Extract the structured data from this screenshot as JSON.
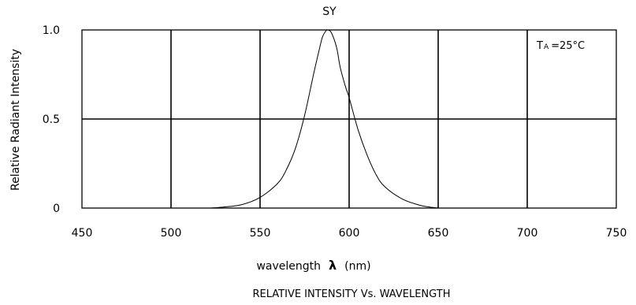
{
  "chart_data": {
    "type": "line",
    "title": "SY",
    "caption": "RELATIVE INTENSITY Vs. WAVELENGTH",
    "xlabel": "wavelength",
    "xlabel_symbol": "λ",
    "xlabel_unit": "(nm)",
    "ylabel": "Relative Radiant Intensity",
    "xlim": [
      450,
      750
    ],
    "ylim": [
      0,
      1.0
    ],
    "x_ticks": [
      450,
      500,
      550,
      600,
      650,
      700,
      750
    ],
    "x_tick_labels": [
      "450",
      "500",
      "550",
      "600",
      "650",
      "700",
      "750"
    ],
    "y_ticks": [
      0,
      0.5,
      1.0
    ],
    "y_tick_labels": [
      "0",
      "0.5",
      "1.0"
    ],
    "grid": true,
    "annotation": {
      "base": "T",
      "sub": "A",
      "rest": "=25°C"
    },
    "series": [
      {
        "x": [
          522,
          530,
          540,
          550,
          560,
          565,
          570,
          575,
          580,
          583,
          585,
          587,
          588,
          590,
          593,
          595,
          598,
          600,
          605,
          610,
          615,
          620,
          630,
          640,
          645,
          650
        ],
        "values": [
          0.0,
          0.006,
          0.02,
          0.06,
          0.14,
          0.22,
          0.34,
          0.52,
          0.75,
          0.88,
          0.96,
          0.995,
          1.0,
          0.985,
          0.9,
          0.79,
          0.68,
          0.62,
          0.44,
          0.3,
          0.19,
          0.12,
          0.05,
          0.015,
          0.006,
          0.0
        ]
      }
    ]
  }
}
